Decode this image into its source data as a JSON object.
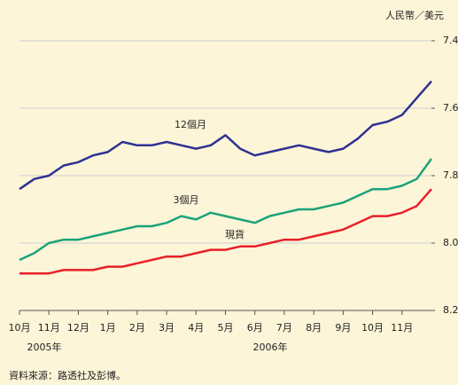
{
  "chart_data": {
    "type": "line",
    "y_label": "人民幣／美元",
    "note": "資料來源：路透社及彭博。",
    "year_labels": [
      "2005年",
      "2006年"
    ],
    "categories": [
      "10月",
      null,
      "11月",
      null,
      "12月",
      null,
      "1月",
      null,
      "2月",
      null,
      "3月",
      null,
      "4月",
      null,
      "5月",
      null,
      "6月",
      null,
      "7月",
      null,
      "8月",
      null,
      "9月",
      null,
      "10月",
      null,
      "11月",
      null,
      null
    ],
    "ylim": [
      7.4,
      8.2
    ],
    "yinverted": true,
    "yticks": [
      7.4,
      7.6,
      7.8,
      {
        "value": 8,
        "label": "8.0"
      },
      8.2
    ],
    "grid": true,
    "series": [
      {
        "name": "12個月",
        "color": "#2e3192",
        "values": [
          7.84,
          7.81,
          7.8,
          7.77,
          7.76,
          7.74,
          7.73,
          7.7,
          7.71,
          7.71,
          7.7,
          7.71,
          7.72,
          7.71,
          7.68,
          7.72,
          7.74,
          7.73,
          7.72,
          7.71,
          7.72,
          7.73,
          7.72,
          7.69,
          7.65,
          7.64,
          7.62,
          7.57,
          7.52
        ]
      },
      {
        "name": "3個月",
        "color": "#1aa37a",
        "values": [
          8.05,
          8.03,
          8.0,
          7.99,
          7.99,
          7.98,
          7.97,
          7.96,
          7.95,
          7.95,
          7.94,
          7.92,
          7.93,
          7.91,
          7.92,
          7.93,
          7.94,
          7.92,
          7.91,
          7.9,
          7.9,
          7.89,
          7.88,
          7.86,
          7.84,
          7.84,
          7.83,
          7.81,
          7.75
        ]
      },
      {
        "name": "現貨",
        "color": "#e8202a",
        "values": [
          8.09,
          8.09,
          8.09,
          8.08,
          8.08,
          8.08,
          8.07,
          8.07,
          8.06,
          8.05,
          8.04,
          8.04,
          8.03,
          8.02,
          8.02,
          8.01,
          8.01,
          8.0,
          7.99,
          7.99,
          7.98,
          7.97,
          7.96,
          7.94,
          7.92,
          7.92,
          7.91,
          7.89,
          7.84
        ]
      }
    ]
  }
}
